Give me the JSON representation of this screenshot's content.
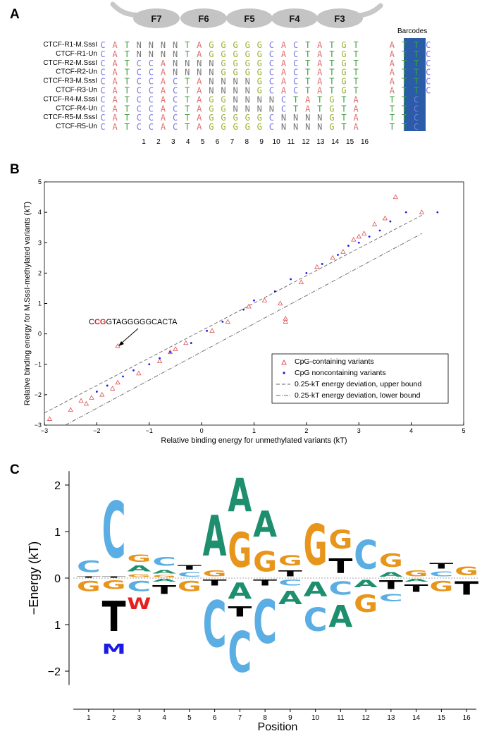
{
  "panel_a": {
    "letter": "A",
    "fingers": [
      "F7",
      "F6",
      "F5",
      "F4",
      "F3"
    ],
    "barcodes_label": "Barcodes",
    "rows": [
      {
        "label": "CTCF-R1-M.SssI",
        "seq": "CATNNNNTAGGGGGCACTATGTATATTC"
      },
      {
        "label": "CTCF-R1-Un",
        "seq": "CATNNNNTAGGGGGCACTATGTATATTC"
      },
      {
        "label": "CTCF-R2-M.SssI",
        "seq": "CATCCANNNNGGGGCACTATGTATATTC"
      },
      {
        "label": "CTCF-R2-Un",
        "seq": "CATCCANNNNGGGGCACTATGTATATTC"
      },
      {
        "label": "CTCF-R3-M.SssI",
        "seq": "CATCCACTANNNNGCACTATGTATATTC"
      },
      {
        "label": "CTCF-R3-Un",
        "seq": "CATCCACTANNNNGCACTATGTATATTC"
      },
      {
        "label": "CTCF-R4-M.SssI",
        "seq": "CATCCACTAGGNNNNCTATGTATATTC"
      },
      {
        "label": "CTCF-R4-Un",
        "seq": "CATCCACTAGGNNNNCTATGTATATTC"
      },
      {
        "label": "CTCF-R5-M.SssI",
        "seq": "CATCCACTAGGGGGCNNNNGTATATTC"
      },
      {
        "label": "CTCF-R5-Un",
        "seq": "CATCCACTAGGGGGCNNNNGTATATTC"
      }
    ],
    "positions": [
      "1",
      "2",
      "3",
      "4",
      "5",
      "6",
      "7",
      "8",
      "9",
      "10",
      "11",
      "12",
      "13",
      "14",
      "15",
      "16"
    ]
  },
  "panel_b": {
    "letter": "B",
    "annotation_prefix": "C",
    "annotation_cg": "CG",
    "annotation_suffix": "GTAGGGGGCACTA"
  },
  "panel_c": {
    "letter": "C",
    "ylabel": "−Energy (kT)",
    "xlabel": "Position"
  },
  "colors": {
    "A": "#1e8f6e",
    "C": "#5aaee3",
    "G": "#e8951b",
    "T": "#000000",
    "N": "#888888",
    "W": "#e62020",
    "M": "#1a1ae6"
  },
  "chart_data": [
    {
      "type": "scatter",
      "xlabel": "Relative binding energy for unmethylated variants (kT)",
      "ylabel": "Relative binding energy for M.SssI-methylated variants (kT)",
      "xlim": [
        -3,
        5
      ],
      "ylim": [
        -3,
        5
      ],
      "xticks": [
        -3,
        -2,
        -1,
        0,
        1,
        2,
        3,
        4,
        5
      ],
      "yticks": [
        -3,
        -2,
        -1,
        0,
        1,
        2,
        3,
        4,
        5
      ],
      "legend": [
        "CpG-containing variants",
        "CpG noncontaining variants",
        "0.25-kT energy deviation, upper bound",
        "0.25-kT energy deviation, lower bound"
      ],
      "legend_position": "lower-right",
      "series": [
        {
          "name": "CpG-containing variants",
          "marker": "triangle",
          "color": "#e05050",
          "x": [
            -2.3,
            -2.2,
            -2.1,
            -1.9,
            -1.7,
            -1.6,
            -1.2,
            -0.8,
            -0.6,
            -0.5,
            -0.3,
            0.2,
            0.5,
            0.9,
            1.2,
            1.5,
            1.6,
            1.9,
            2.2,
            2.5,
            2.7,
            2.9,
            3.0,
            3.1,
            3.3,
            3.5,
            3.7,
            4.2,
            -1.6,
            1.6,
            -2.9,
            -2.5
          ],
          "y": [
            -2.2,
            -2.3,
            -2.1,
            -2.0,
            -1.8,
            -1.6,
            -1.3,
            -0.9,
            -0.6,
            -0.5,
            -0.3,
            0.1,
            0.4,
            0.9,
            1.1,
            1.0,
            0.5,
            1.7,
            2.2,
            2.5,
            2.7,
            3.1,
            3.2,
            3.3,
            3.6,
            3.8,
            4.5,
            4.0,
            -0.4,
            0.4,
            -2.8,
            -2.5
          ]
        },
        {
          "name": "CpG noncontaining variants",
          "marker": "dot",
          "color": "#1a1ae6",
          "x": [
            -2.0,
            -1.8,
            -1.5,
            -1.3,
            -1.0,
            -0.8,
            -0.6,
            -0.2,
            0.1,
            0.4,
            0.8,
            1.0,
            1.4,
            1.7,
            2.0,
            2.3,
            2.6,
            2.8,
            3.0,
            3.2,
            3.4,
            3.6,
            3.9,
            4.5
          ],
          "y": [
            -1.9,
            -1.7,
            -1.4,
            -1.2,
            -1.0,
            -0.8,
            -0.6,
            -0.3,
            0.1,
            0.4,
            0.8,
            1.1,
            1.4,
            1.8,
            2.0,
            2.3,
            2.6,
            2.9,
            3.0,
            3.2,
            3.4,
            3.7,
            4.0,
            4.0
          ]
        },
        {
          "name": "0.25-kT energy deviation, upper bound",
          "x": [
            -3,
            4.2
          ],
          "y": [
            -2.6,
            3.9
          ]
        },
        {
          "name": "0.25-kT energy deviation, lower bound",
          "x": [
            -2.6,
            4.2
          ],
          "y": [
            -3,
            3.3
          ]
        }
      ]
    },
    {
      "type": "sequence-logo",
      "ylabel": "−Energy (kT)",
      "xlabel": "Position",
      "ylim": [
        -2.3,
        2.3
      ],
      "yticks": [
        "2",
        "1",
        "0",
        "1",
        "−2"
      ],
      "xticks": [
        "1",
        "2",
        "3",
        "4",
        "5",
        "6",
        "7",
        "8",
        "9",
        "10",
        "11",
        "12",
        "13",
        "14",
        "15",
        "16"
      ],
      "positions": [
        {
          "up": [
            [
              "T",
              0.05
            ],
            [
              "C",
              0.4
            ]
          ],
          "down": [
            [
              "G",
              0.35
            ]
          ]
        },
        {
          "up": [
            [
              "T",
              0.05
            ],
            [
              "C",
              1.95
            ]
          ],
          "down": [
            [
              "G",
              0.3
            ],
            [
              "T",
              1.05
            ],
            [
              "M",
              0.35
            ]
          ]
        },
        {
          "up": [
            [
              "G",
              0.1
            ],
            [
              "A",
              0.2
            ],
            [
              "G",
              0.25
            ]
          ],
          "down": [
            [
              "C",
              0.35
            ],
            [
              "W",
              0.4
            ]
          ]
        },
        {
          "up": [
            [
              "G",
              0.07
            ],
            [
              "A",
              0.13
            ],
            [
              "C",
              0.3
            ]
          ],
          "down": [
            [
              "A",
              0.1
            ],
            [
              "T",
              0.3
            ]
          ]
        },
        {
          "up": [
            [
              "C",
              0.15
            ],
            [
              "T",
              0.15
            ]
          ],
          "down": [
            [
              "G",
              0.35
            ]
          ]
        },
        {
          "up": [
            [
              "G",
              0.2
            ],
            [
              "A",
              1.4
            ]
          ],
          "down": [
            [
              "T",
              0.2
            ],
            [
              "C",
              1.6
            ]
          ]
        },
        {
          "up": [
            [
              "G",
              1.2
            ],
            [
              "A",
              1.15
            ]
          ],
          "down": [
            [
              "A",
              0.55
            ],
            [
              "T",
              0.35
            ],
            [
              "C",
              1.4
            ]
          ]
        },
        {
          "up": [
            [
              "G",
              0.7
            ],
            [
              "A",
              0.9
            ]
          ],
          "down": [
            [
              "T",
              0.2
            ],
            [
              "C",
              1.5
            ]
          ]
        },
        {
          "up": [
            [
              "T",
              0.2
            ],
            [
              "G",
              0.35
            ]
          ],
          "down": [
            [
              "C",
              0.2
            ],
            [
              "A",
              0.45
            ]
          ]
        },
        {
          "up": [
            [
              "G",
              1.4
            ]
          ],
          "down": [
            [
              "A",
              0.5
            ],
            [
              "C",
              0.8
            ]
          ]
        },
        {
          "up": [
            [
              "T",
              0.5
            ],
            [
              "G",
              0.65
            ]
          ],
          "down": [
            [
              "C",
              0.45
            ],
            [
              "A",
              0.75
            ]
          ]
        },
        {
          "up": [
            [
              "C",
              1.0
            ]
          ],
          "down": [
            [
              "A",
              0.25
            ],
            [
              "G",
              0.6
            ]
          ]
        },
        {
          "up": [
            [
              "A",
              0.15
            ],
            [
              "G",
              0.45
            ]
          ],
          "down": [
            [
              "T",
              0.3
            ],
            [
              "C",
              0.25
            ]
          ]
        },
        {
          "up": [
            [
              "G",
              0.2
            ]
          ],
          "down": [
            [
              "A",
              0.1
            ],
            [
              "T",
              0.25
            ]
          ]
        },
        {
          "up": [
            [
              "C",
              0.17
            ],
            [
              "T",
              0.18
            ]
          ],
          "down": [
            [
              "G",
              0.35
            ]
          ]
        },
        {
          "up": [
            [
              "G",
              0.3
            ]
          ],
          "down": [
            [
              "T",
              0.45
            ]
          ]
        }
      ]
    }
  ]
}
